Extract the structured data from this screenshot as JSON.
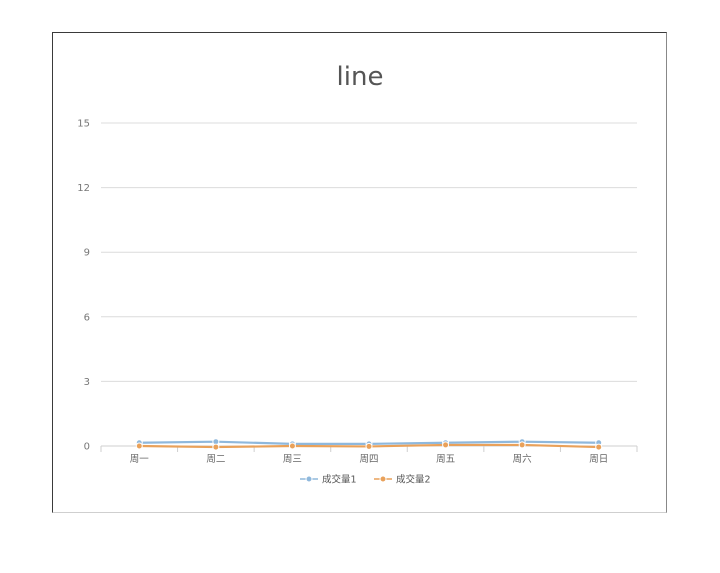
{
  "chart_data": {
    "type": "line",
    "title": "line",
    "xlabel": "",
    "ylabel": "",
    "categories": [
      "周一",
      "周二",
      "周三",
      "周四",
      "周五",
      "周六",
      "周日"
    ],
    "ylim": [
      0,
      15
    ],
    "yticks": [
      0,
      3,
      6,
      9,
      12,
      15
    ],
    "grid": true,
    "legend": "bottom",
    "series": [
      {
        "name": "成交量1",
        "color": "#8fb8dc",
        "values": [
          0.15,
          0.2,
          0.1,
          0.1,
          0.15,
          0.2,
          0.15
        ]
      },
      {
        "name": "成交量2",
        "color": "#e9a15a",
        "values": [
          0.0,
          -0.05,
          0.0,
          -0.02,
          0.05,
          0.05,
          -0.05
        ]
      }
    ]
  }
}
